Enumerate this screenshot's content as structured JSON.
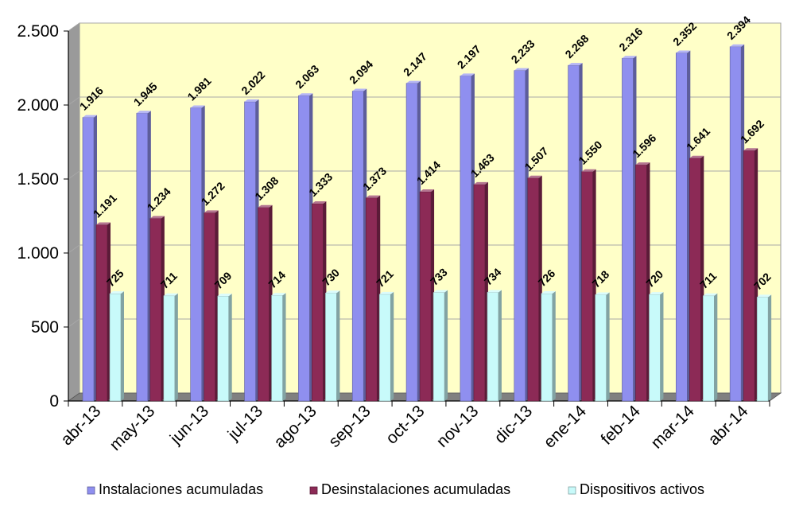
{
  "chart_data": {
    "type": "bar",
    "categories": [
      "abr-13",
      "may-13",
      "jun-13",
      "jul-13",
      "ago-13",
      "sep-13",
      "oct-13",
      "nov-13",
      "dic-13",
      "ene-14",
      "feb-14",
      "mar-14",
      "abr-14"
    ],
    "series": [
      {
        "name": "Instalaciones acumuladas",
        "color": "#8f8fef",
        "values": [
          1916,
          1945,
          1981,
          2022,
          2063,
          2094,
          2147,
          2197,
          2233,
          2268,
          2316,
          2352,
          2394
        ],
        "labels": [
          "1.916",
          "1.945",
          "1.981",
          "2.022",
          "2.063",
          "2.094",
          "2.147",
          "2.197",
          "2.233",
          "2.268",
          "2.316",
          "2.352",
          "2.394"
        ]
      },
      {
        "name": "Desinstalaciones acumuladas",
        "color": "#8c2a56",
        "values": [
          1191,
          1234,
          1272,
          1308,
          1333,
          1373,
          1414,
          1463,
          1507,
          1550,
          1596,
          1641,
          1692
        ],
        "labels": [
          "1.191",
          "1.234",
          "1.272",
          "1.308",
          "1.333",
          "1.373",
          "1.414",
          "1.463",
          "1.507",
          "1.550",
          "1.596",
          "1.641",
          "1.692"
        ]
      },
      {
        "name": "Dispositivos activos",
        "color": "#c8fafa",
        "values": [
          725,
          711,
          709,
          714,
          730,
          721,
          733,
          734,
          726,
          718,
          720,
          711,
          702
        ],
        "labels": [
          "725",
          "711",
          "709",
          "714",
          "730",
          "721",
          "733",
          "734",
          "726",
          "718",
          "720",
          "711",
          "702"
        ]
      }
    ],
    "ylim": [
      0,
      2500
    ],
    "yticks": [
      0,
      500,
      1000,
      1500,
      2000,
      2500
    ],
    "ytick_labels": [
      "0",
      "500",
      "1.000",
      "1.500",
      "2.000",
      "2.500"
    ],
    "grid": true,
    "legend_position": "bottom",
    "plot_background": "#ffffc8",
    "floor_color": "#808080"
  }
}
